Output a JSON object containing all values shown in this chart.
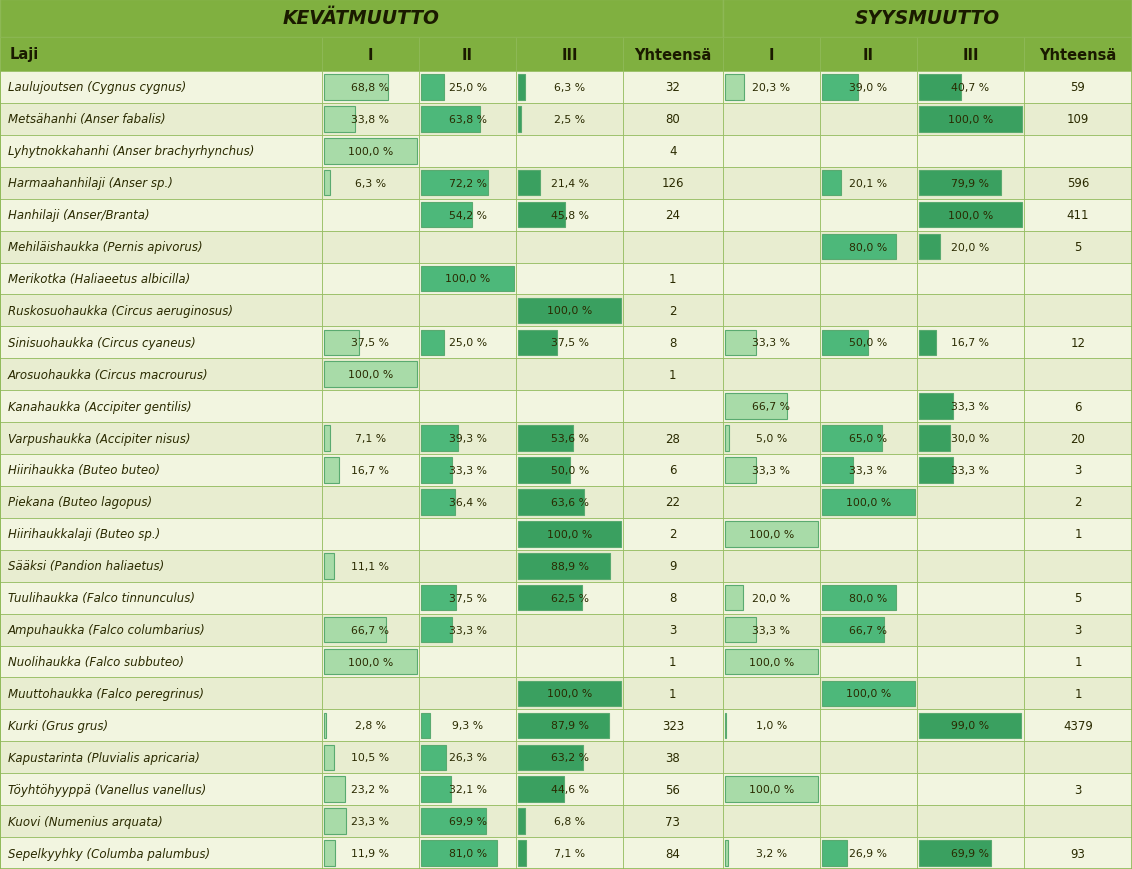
{
  "title_kev": "KEVÄTMUUTTO",
  "title_syys": "SYYSMUUTTO",
  "header_row": [
    "Laji",
    "I",
    "II",
    "III",
    "Yhteensä",
    "I",
    "II",
    "III",
    "Yhteensä"
  ],
  "rows": [
    {
      "name": "Laulujoutsen (Cygnus cygnus)",
      "kev_I": 68.8,
      "kev_II": 25.0,
      "kev_III": 6.3,
      "kev_tot": "32",
      "sys_I": 20.3,
      "sys_II": 39.0,
      "sys_III": 40.7,
      "sys_tot": "59"
    },
    {
      "name": "Metsähanhi (Anser fabalis)",
      "kev_I": 33.8,
      "kev_II": 63.8,
      "kev_III": 2.5,
      "kev_tot": "80",
      "sys_I": 0,
      "sys_II": 0,
      "sys_III": 100.0,
      "sys_tot": "109"
    },
    {
      "name": "Lyhytnokkahanhi (Anser brachyrhynchus)",
      "kev_I": 100.0,
      "kev_II": 0,
      "kev_III": 0,
      "kev_tot": "4",
      "sys_I": 0,
      "sys_II": 0,
      "sys_III": 0,
      "sys_tot": ""
    },
    {
      "name": "Harmaahanhilaji (Anser sp.)",
      "kev_I": 6.3,
      "kev_II": 72.2,
      "kev_III": 21.4,
      "kev_tot": "126",
      "sys_I": 0,
      "sys_II": 20.1,
      "sys_III": 79.9,
      "sys_tot": "596"
    },
    {
      "name": "Hanhilaji (Anser/Branta)",
      "kev_I": 0,
      "kev_II": 54.2,
      "kev_III": 45.8,
      "kev_tot": "24",
      "sys_I": 0,
      "sys_II": 0,
      "sys_III": 100.0,
      "sys_tot": "411"
    },
    {
      "name": "Mehiläishaukka (Pernis apivorus)",
      "kev_I": 0,
      "kev_II": 0,
      "kev_III": 0,
      "kev_tot": "",
      "sys_I": 0,
      "sys_II": 80.0,
      "sys_III": 20.0,
      "sys_tot": "5"
    },
    {
      "name": "Merikotka (Haliaeetus albicilla)",
      "kev_I": 0,
      "kev_II": 100.0,
      "kev_III": 0,
      "kev_tot": "1",
      "sys_I": 0,
      "sys_II": 0,
      "sys_III": 0,
      "sys_tot": ""
    },
    {
      "name": "Ruskosuohaukka (Circus aeruginosus)",
      "kev_I": 0,
      "kev_II": 0,
      "kev_III": 100.0,
      "kev_tot": "2",
      "sys_I": 0,
      "sys_II": 0,
      "sys_III": 0,
      "sys_tot": ""
    },
    {
      "name": "Sinisuohaukka (Circus cyaneus)",
      "kev_I": 37.5,
      "kev_II": 25.0,
      "kev_III": 37.5,
      "kev_tot": "8",
      "sys_I": 33.3,
      "sys_II": 50.0,
      "sys_III": 16.7,
      "sys_tot": "12"
    },
    {
      "name": "Arosuohaukka (Circus macrourus)",
      "kev_I": 100.0,
      "kev_II": 0,
      "kev_III": 0,
      "kev_tot": "1",
      "sys_I": 0,
      "sys_II": 0,
      "sys_III": 0,
      "sys_tot": ""
    },
    {
      "name": "Kanahaukka (Accipiter gentilis)",
      "kev_I": 0,
      "kev_II": 0,
      "kev_III": 0,
      "kev_tot": "",
      "sys_I": 66.7,
      "sys_II": 0,
      "sys_III": 33.3,
      "sys_tot": "6"
    },
    {
      "name": "Varpushaukka (Accipiter nisus)",
      "kev_I": 7.1,
      "kev_II": 39.3,
      "kev_III": 53.6,
      "kev_tot": "28",
      "sys_I": 5.0,
      "sys_II": 65.0,
      "sys_III": 30.0,
      "sys_tot": "20"
    },
    {
      "name": "Hiirihaukka (Buteo buteo)",
      "kev_I": 16.7,
      "kev_II": 33.3,
      "kev_III": 50.0,
      "kev_tot": "6",
      "sys_I": 33.3,
      "sys_II": 33.3,
      "sys_III": 33.3,
      "sys_tot": "3"
    },
    {
      "name": "Piekana (Buteo lagopus)",
      "kev_I": 0,
      "kev_II": 36.4,
      "kev_III": 63.6,
      "kev_tot": "22",
      "sys_I": 0,
      "sys_II": 100.0,
      "sys_III": 0,
      "sys_tot": "2"
    },
    {
      "name": "Hiirihaukkalaji (Buteo sp.)",
      "kev_I": 0,
      "kev_II": 0,
      "kev_III": 100.0,
      "kev_tot": "2",
      "sys_I": 100.0,
      "sys_II": 0,
      "sys_III": 0,
      "sys_tot": "1"
    },
    {
      "name": "Sääksi (Pandion haliaetus)",
      "kev_I": 11.1,
      "kev_II": 0,
      "kev_III": 88.9,
      "kev_tot": "9",
      "sys_I": 0,
      "sys_II": 0,
      "sys_III": 0,
      "sys_tot": ""
    },
    {
      "name": "Tuulihaukka (Falco tinnunculus)",
      "kev_I": 0,
      "kev_II": 37.5,
      "kev_III": 62.5,
      "kev_tot": "8",
      "sys_I": 20.0,
      "sys_II": 80.0,
      "sys_III": 0,
      "sys_tot": "5"
    },
    {
      "name": "Ampuhaukka (Falco columbarius)",
      "kev_I": 66.7,
      "kev_II": 33.3,
      "kev_III": 0,
      "kev_tot": "3",
      "sys_I": 33.3,
      "sys_II": 66.7,
      "sys_III": 0,
      "sys_tot": "3"
    },
    {
      "name": "Nuolihaukka (Falco subbuteo)",
      "kev_I": 100.0,
      "kev_II": 0,
      "kev_III": 0,
      "kev_tot": "1",
      "sys_I": 100.0,
      "sys_II": 0,
      "sys_III": 0,
      "sys_tot": "1"
    },
    {
      "name": "Muuttohaukka (Falco peregrinus)",
      "kev_I": 0,
      "kev_II": 0,
      "kev_III": 100.0,
      "kev_tot": "1",
      "sys_I": 0,
      "sys_II": 100.0,
      "sys_III": 0,
      "sys_tot": "1"
    },
    {
      "name": "Kurki (Grus grus)",
      "kev_I": 2.8,
      "kev_II": 9.3,
      "kev_III": 87.9,
      "kev_tot": "323",
      "sys_I": 1.0,
      "sys_II": 0.0,
      "sys_III": 99.0,
      "sys_tot": "4379"
    },
    {
      "name": "Kapustarinta (Pluvialis apricaria)",
      "kev_I": 10.5,
      "kev_II": 26.3,
      "kev_III": 63.2,
      "kev_tot": "38",
      "sys_I": 0,
      "sys_II": 0,
      "sys_III": 0,
      "sys_tot": ""
    },
    {
      "name": "Töyhtöhyyppä (Vanellus vanellus)",
      "kev_I": 23.2,
      "kev_II": 32.1,
      "kev_III": 44.6,
      "kev_tot": "56",
      "sys_I": 100.0,
      "sys_II": 0,
      "sys_III": 0,
      "sys_tot": "3"
    },
    {
      "name": "Kuovi (Numenius arquata)",
      "kev_I": 23.3,
      "kev_II": 69.9,
      "kev_III": 6.8,
      "kev_tot": "73",
      "sys_I": 0,
      "sys_II": 0,
      "sys_III": 0,
      "sys_tot": ""
    },
    {
      "name": "Sepelkyyhky (Columba palumbus)",
      "kev_I": 11.9,
      "kev_II": 81.0,
      "kev_III": 7.1,
      "kev_tot": "84",
      "sys_I": 3.2,
      "sys_II": 26.9,
      "sys_III": 69.9,
      "sys_tot": "93"
    }
  ],
  "colors": {
    "header_bg": "#80B040",
    "row_bg_light": "#F2F5E0",
    "row_bg_dark": "#E8EDD0",
    "bar_col1": "#A8DBA8",
    "bar_col2": "#4DB87A",
    "bar_col3": "#3AA060",
    "bar_border": "#5AAA70",
    "text_dark": "#2A2A00",
    "header_text": "#1A1A00",
    "grid_line": "#8DB855"
  },
  "fig_width": 11.32,
  "fig_height": 8.7,
  "dpi": 100
}
